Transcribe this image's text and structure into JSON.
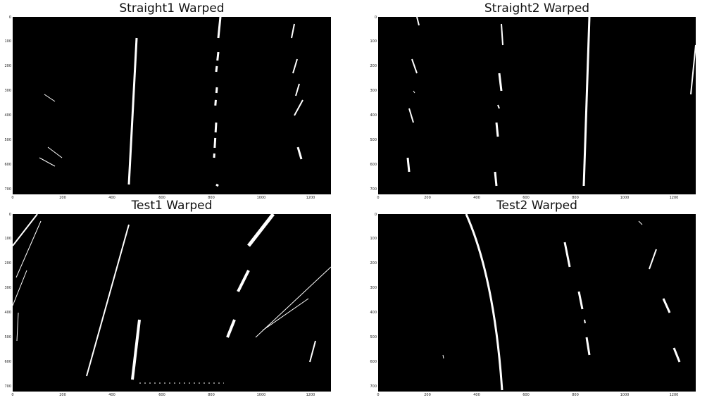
{
  "panels": [
    {
      "title": "Straight1 Warped",
      "x_ticks": [
        "0",
        "200",
        "400",
        "600",
        "800",
        "1000",
        "1200"
      ],
      "y_ticks": [
        "0",
        "100",
        "200",
        "300",
        "400",
        "500",
        "600",
        "700"
      ]
    },
    {
      "title": "Straight2 Warped",
      "x_ticks": [
        "0",
        "200",
        "400",
        "600",
        "800",
        "1000",
        "1200"
      ],
      "y_ticks": [
        "0",
        "100",
        "200",
        "300",
        "400",
        "500",
        "600",
        "700"
      ]
    },
    {
      "title": "Test1 Warped",
      "x_ticks": [
        "0",
        "200",
        "400",
        "600",
        "800",
        "1000",
        "1200"
      ],
      "y_ticks": [
        "0",
        "100",
        "200",
        "300",
        "400",
        "500",
        "600",
        "700"
      ]
    },
    {
      "title": "Test2 Warped",
      "x_ticks": [
        "0",
        "200",
        "400",
        "600",
        "800",
        "1000",
        "1200"
      ],
      "y_ticks": [
        "0",
        "100",
        "200",
        "300",
        "400",
        "500",
        "600",
        "700"
      ]
    }
  ],
  "colors": {
    "background": "#000000",
    "lane_pixels": "#ffffff"
  }
}
